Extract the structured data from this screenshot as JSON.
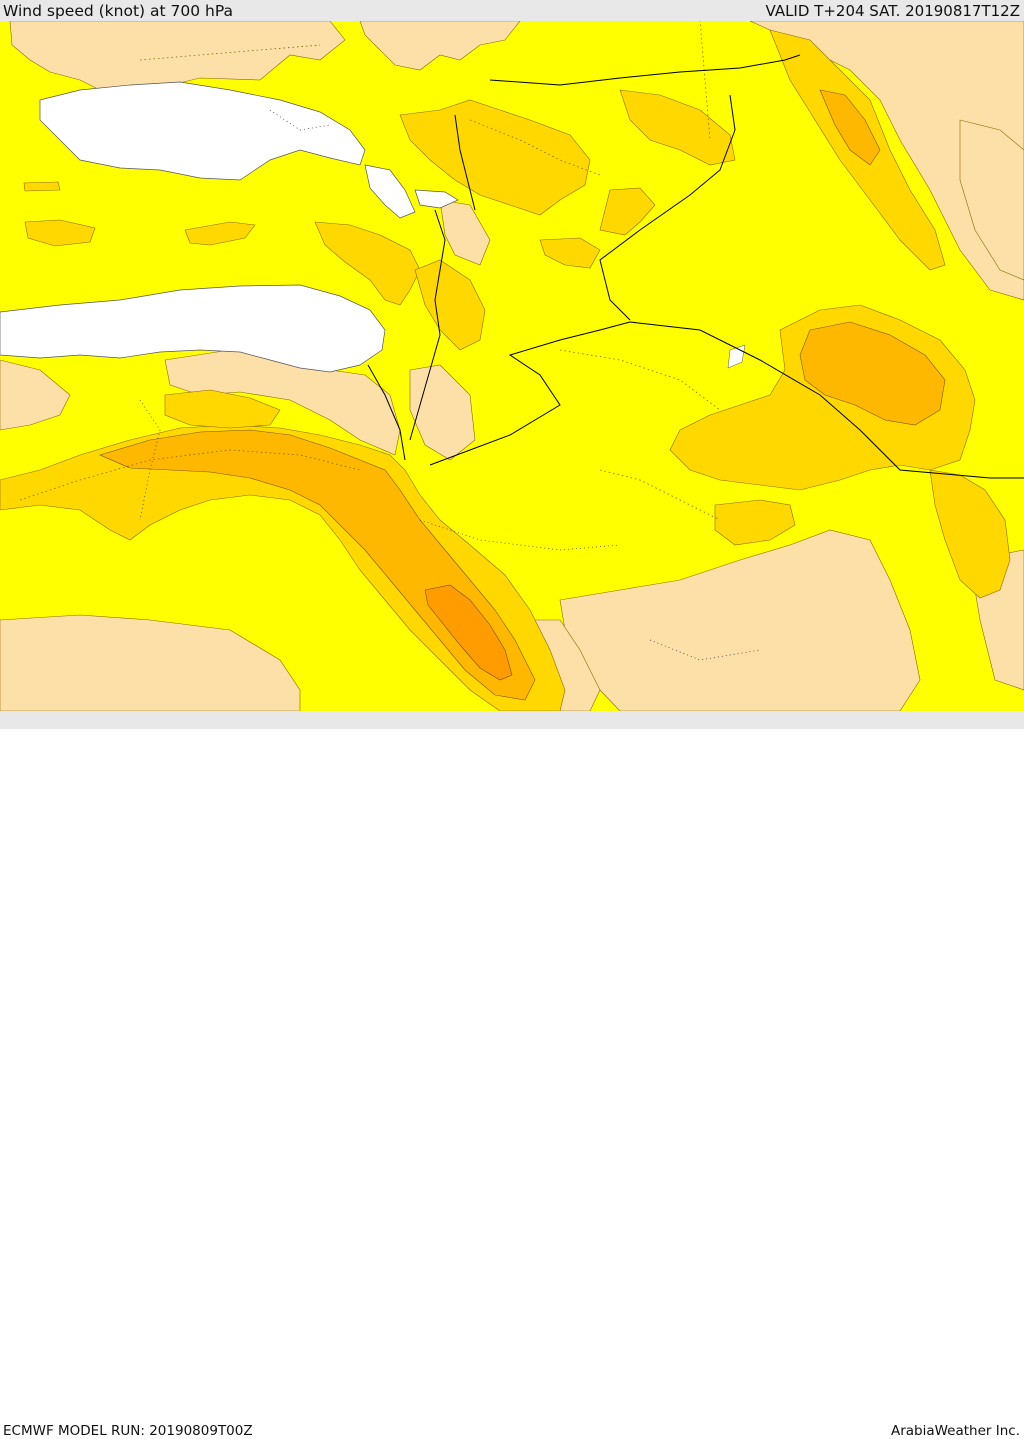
{
  "header": {
    "title": "Wind speed (knot) at 700 hPa",
    "valid": "VALID T+204 SAT. 20190817T12Z"
  },
  "footer": {
    "model_run": "ECMWF MODEL RUN: 20190809T00Z",
    "credit": "ArabiaWeather Inc."
  },
  "colors": {
    "water": "#ffffff",
    "light_wind": "#fde0a8",
    "yellow": "#ffff00",
    "gold": "#ffd800",
    "amber": "#ffb800",
    "orange": "#ff9c00",
    "bar": "#e8e8e8"
  }
}
